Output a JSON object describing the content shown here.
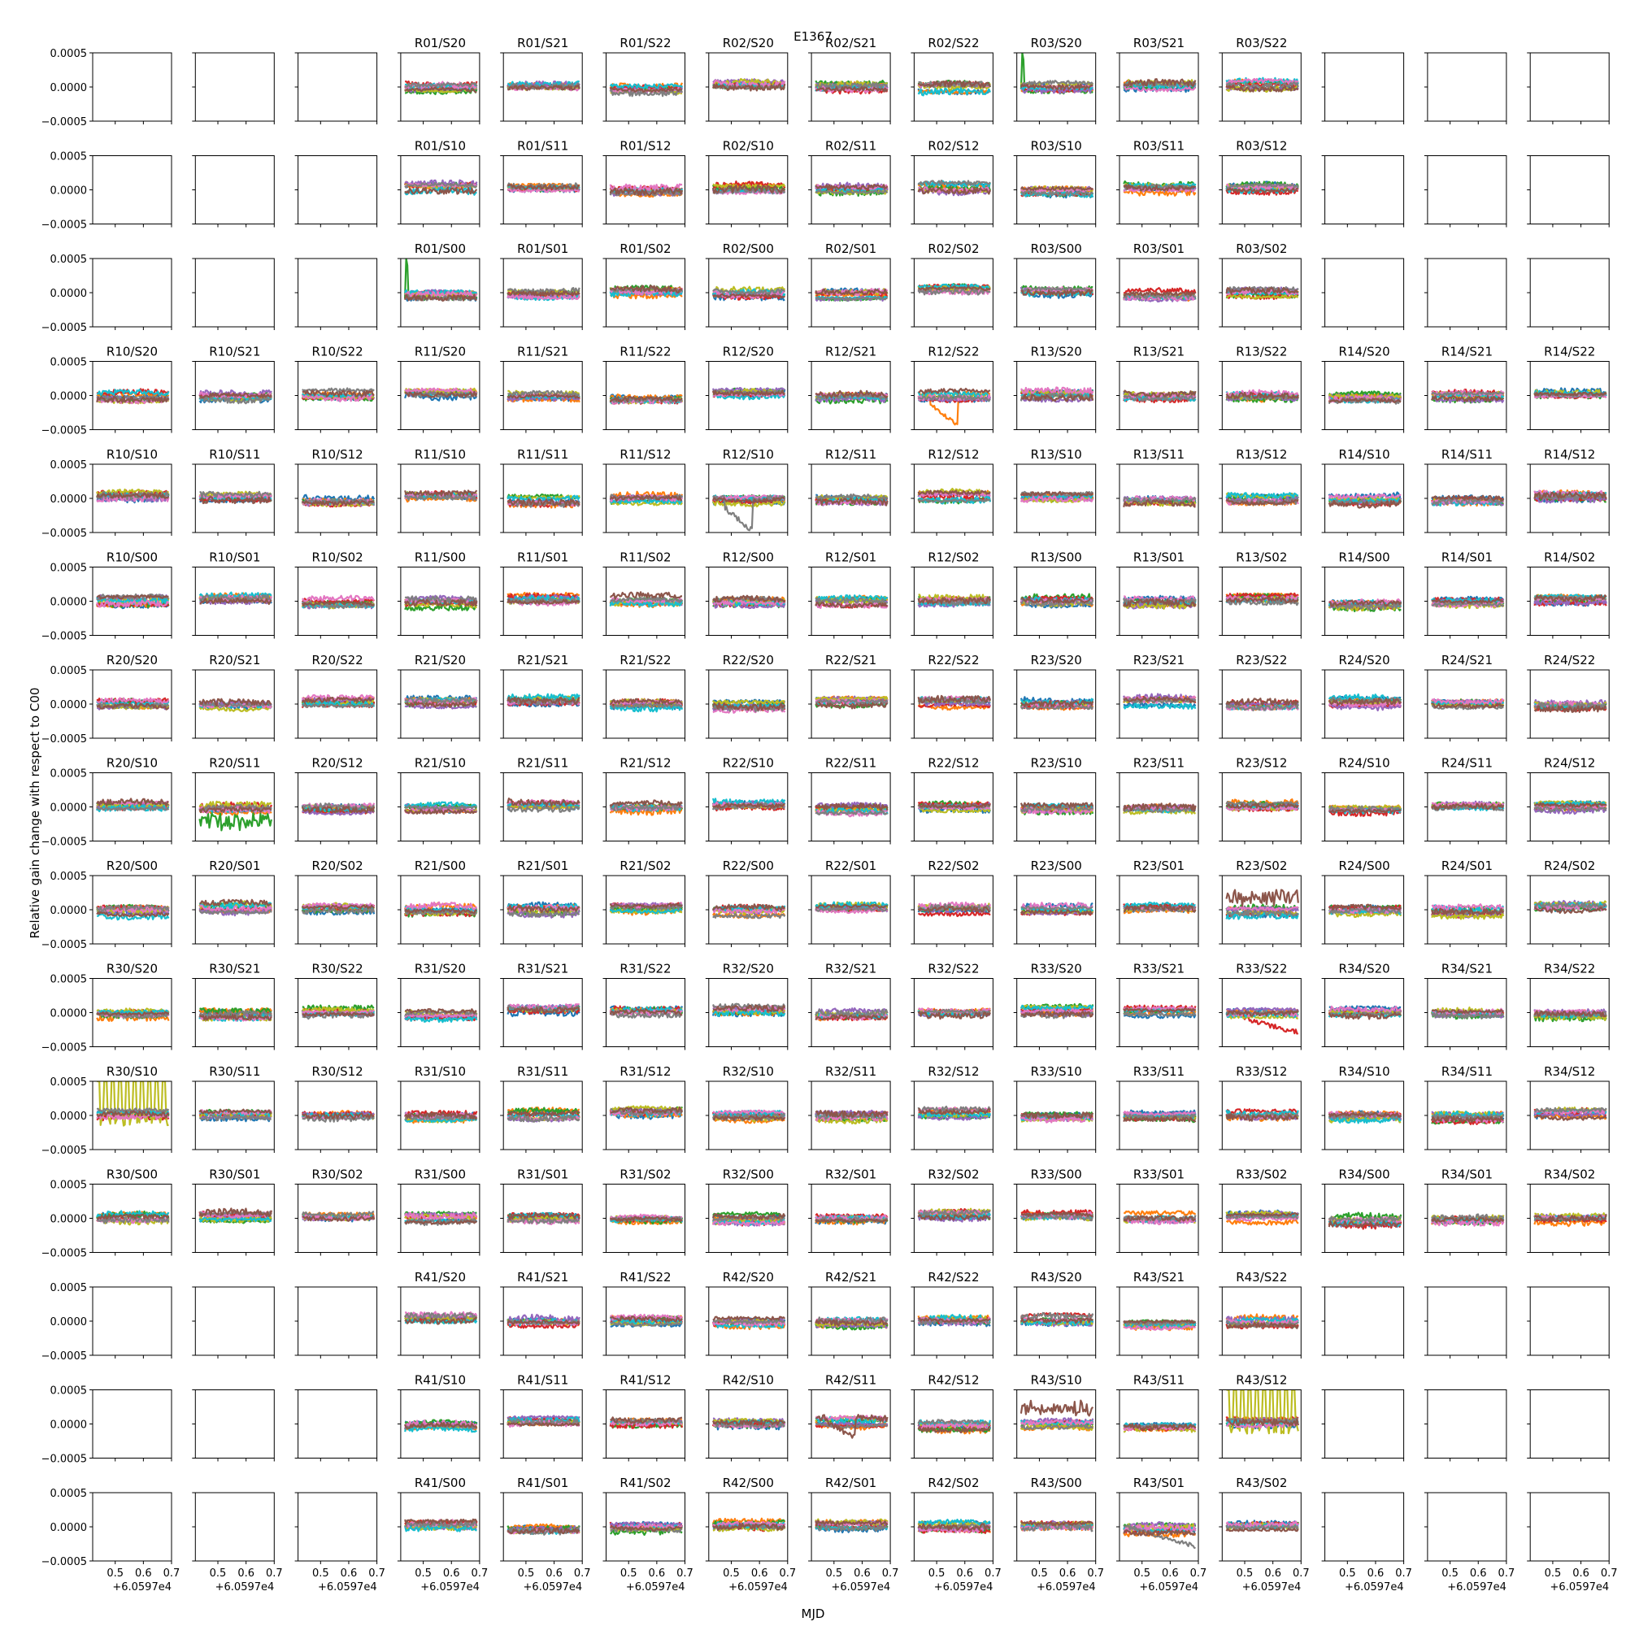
{
  "figure": {
    "title": "E1367",
    "xlabel": "MJD",
    "ylabel": "Relative gain change with respect to C00"
  },
  "chart_data": {
    "type": "line",
    "title": "E1367",
    "xlabel": "MJD",
    "ylabel": "Relative gain change with respect to C00",
    "grid": false,
    "legend": "none",
    "rows": 15,
    "cols": 15,
    "xlim": [
      60597.42,
      60597.7
    ],
    "ylim": [
      -0.0005,
      0.0005
    ],
    "x_ticks": [
      "0.5",
      "0.6",
      "0.7"
    ],
    "x_offset_label": "+6.0597e4",
    "y_ticks": [
      "0.0005",
      "0.0000",
      "−0.0005"
    ],
    "series_colors": [
      "#1f77b4",
      "#ff7f0e",
      "#2ca02c",
      "#d62728",
      "#9467bd",
      "#bcbd22",
      "#17becf",
      "#e377c2",
      "#7f7f7f",
      "#8c564b"
    ],
    "panel_titles": [
      [
        "",
        "",
        "",
        "R01/S20",
        "R01/S21",
        "R01/S22",
        "R02/S20",
        "R02/S21",
        "R02/S22",
        "R03/S20",
        "R03/S21",
        "R03/S22",
        "",
        "",
        ""
      ],
      [
        "",
        "",
        "",
        "R01/S10",
        "R01/S11",
        "R01/S12",
        "R02/S10",
        "R02/S11",
        "R02/S12",
        "R03/S10",
        "R03/S11",
        "R03/S12",
        "",
        "",
        ""
      ],
      [
        "",
        "",
        "",
        "R01/S00",
        "R01/S01",
        "R01/S02",
        "R02/S00",
        "R02/S01",
        "R02/S02",
        "R03/S00",
        "R03/S01",
        "R03/S02",
        "",
        "",
        ""
      ],
      [
        "R10/S20",
        "R10/S21",
        "R10/S22",
        "R11/S20",
        "R11/S21",
        "R11/S22",
        "R12/S20",
        "R12/S21",
        "R12/S22",
        "R13/S20",
        "R13/S21",
        "R13/S22",
        "R14/S20",
        "R14/S21",
        "R14/S22"
      ],
      [
        "R10/S10",
        "R10/S11",
        "R10/S12",
        "R11/S10",
        "R11/S11",
        "R11/S12",
        "R12/S10",
        "R12/S11",
        "R12/S12",
        "R13/S10",
        "R13/S11",
        "R13/S12",
        "R14/S10",
        "R14/S11",
        "R14/S12"
      ],
      [
        "R10/S00",
        "R10/S01",
        "R10/S02",
        "R11/S00",
        "R11/S01",
        "R11/S02",
        "R12/S00",
        "R12/S01",
        "R12/S02",
        "R13/S00",
        "R13/S01",
        "R13/S02",
        "R14/S00",
        "R14/S01",
        "R14/S02"
      ],
      [
        "R20/S20",
        "R20/S21",
        "R20/S22",
        "R21/S20",
        "R21/S21",
        "R21/S22",
        "R22/S20",
        "R22/S21",
        "R22/S22",
        "R23/S20",
        "R23/S21",
        "R23/S22",
        "R24/S20",
        "R24/S21",
        "R24/S22"
      ],
      [
        "R20/S10",
        "R20/S11",
        "R20/S12",
        "R21/S10",
        "R21/S11",
        "R21/S12",
        "R22/S10",
        "R22/S11",
        "R22/S12",
        "R23/S10",
        "R23/S11",
        "R23/S12",
        "R24/S10",
        "R24/S11",
        "R24/S12"
      ],
      [
        "R20/S00",
        "R20/S01",
        "R20/S02",
        "R21/S00",
        "R21/S01",
        "R21/S02",
        "R22/S00",
        "R22/S01",
        "R22/S02",
        "R23/S00",
        "R23/S01",
        "R23/S02",
        "R24/S00",
        "R24/S01",
        "R24/S02"
      ],
      [
        "R30/S20",
        "R30/S21",
        "R30/S22",
        "R31/S20",
        "R31/S21",
        "R31/S22",
        "R32/S20",
        "R32/S21",
        "R32/S22",
        "R33/S20",
        "R33/S21",
        "R33/S22",
        "R34/S20",
        "R34/S21",
        "R34/S22"
      ],
      [
        "R30/S10",
        "R30/S11",
        "R30/S12",
        "R31/S10",
        "R31/S11",
        "R31/S12",
        "R32/S10",
        "R32/S11",
        "R32/S12",
        "R33/S10",
        "R33/S11",
        "R33/S12",
        "R34/S10",
        "R34/S11",
        "R34/S12"
      ],
      [
        "R30/S00",
        "R30/S01",
        "R30/S02",
        "R31/S00",
        "R31/S01",
        "R31/S02",
        "R32/S00",
        "R32/S01",
        "R32/S02",
        "R33/S00",
        "R33/S01",
        "R33/S02",
        "R34/S00",
        "R34/S01",
        "R34/S02"
      ],
      [
        "",
        "",
        "",
        "R41/S20",
        "R41/S21",
        "R41/S22",
        "R42/S20",
        "R42/S21",
        "R42/S22",
        "R43/S20",
        "R43/S21",
        "R43/S22",
        "",
        "",
        ""
      ],
      [
        "",
        "",
        "",
        "R41/S10",
        "R41/S11",
        "R41/S12",
        "R42/S10",
        "R42/S11",
        "R42/S12",
        "R43/S10",
        "R43/S11",
        "R43/S12",
        "",
        "",
        ""
      ],
      [
        "",
        "",
        "",
        "R41/S00",
        "R41/S01",
        "R41/S02",
        "R42/S00",
        "R42/S01",
        "R42/S02",
        "R43/S00",
        "R43/S01",
        "R43/S02",
        "",
        "",
        ""
      ]
    ],
    "features": {
      "R03/S20": {
        "spike_value": 0.0005,
        "spike_color": "#2ca02c"
      },
      "R01/S00": {
        "spike_value": 0.0005,
        "spike_color": "#2ca02c"
      },
      "R12/S10": {
        "drop_value": -0.0005,
        "drop_color": "#7f7f7f"
      },
      "R12/S22": {
        "drop_value": -0.0005,
        "drop_color": "#ff7f0e"
      },
      "R30/S10": {
        "oscillation_amplitude": 0.0005,
        "oscillation_color": "#bcbd22"
      },
      "R33/S22": {
        "trend_end_value": -0.0003,
        "trend_color": "#d62728"
      },
      "R43/S01": {
        "trend_end_value": -0.0003,
        "trend_color": "#7f7f7f"
      },
      "R43/S12": {
        "oscillation_amplitude": 0.0005,
        "oscillation_color": "#bcbd22"
      },
      "R20/S11": {
        "noise_offset": -0.0002,
        "noise_color": "#2ca02c"
      },
      "R23/S02": {
        "noise_offset": 0.0002,
        "noise_color": "#8c564b"
      },
      "R42/S11": {
        "drop_value": -0.0003,
        "drop_color": "#8c564b"
      },
      "R43/S10": {
        "noise_offset": 0.0002,
        "noise_color": "#8c564b"
      }
    }
  }
}
